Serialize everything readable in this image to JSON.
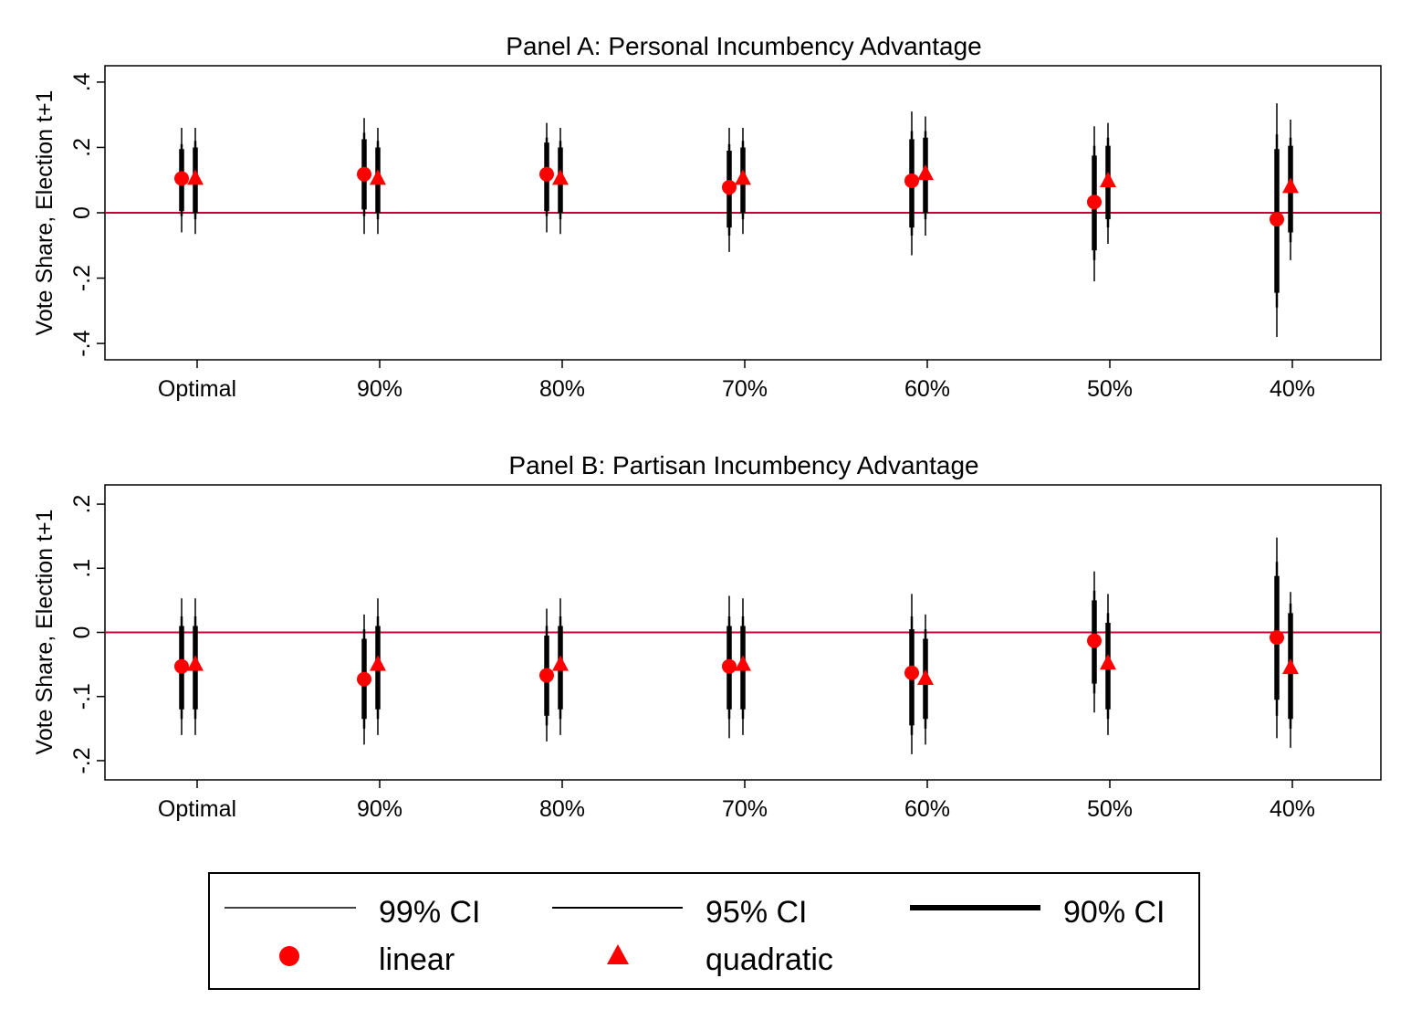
{
  "chart_data": [
    {
      "type": "scatter",
      "title": "Panel A: Personal Incumbency Advantage",
      "ylabel": "Vote Share, Election t+1",
      "xlabel": "",
      "categories": [
        "Optimal",
        "90%",
        "80%",
        "70%",
        "60%",
        "50%",
        "40%"
      ],
      "ylim": [
        -0.45,
        0.45
      ],
      "yticks": [
        -0.4,
        -0.2,
        0,
        0.2,
        0.4
      ],
      "ytick_labels": [
        "-.4",
        "-.2",
        "0",
        ".2",
        ".4"
      ],
      "reference_line": 0,
      "series": [
        {
          "name": "linear",
          "points": [
            {
              "category": "Optimal",
              "estimate": 0.105,
              "ci90": [
                0.005,
                0.195
              ],
              "ci95": [
                -0.01,
                0.21
              ],
              "ci99": [
                -0.06,
                0.26
              ]
            },
            {
              "category": "90%",
              "estimate": 0.118,
              "ci90": [
                0.01,
                0.225
              ],
              "ci95": [
                -0.01,
                0.245
              ],
              "ci99": [
                -0.065,
                0.29
              ]
            },
            {
              "category": "80%",
              "estimate": 0.118,
              "ci90": [
                0.005,
                0.215
              ],
              "ci95": [
                -0.01,
                0.23
              ],
              "ci99": [
                -0.06,
                0.275
              ]
            },
            {
              "category": "70%",
              "estimate": 0.078,
              "ci90": [
                -0.045,
                0.19
              ],
              "ci95": [
                -0.07,
                0.21
              ],
              "ci99": [
                -0.12,
                0.26
              ]
            },
            {
              "category": "60%",
              "estimate": 0.098,
              "ci90": [
                -0.045,
                0.225
              ],
              "ci95": [
                -0.07,
                0.25
              ],
              "ci99": [
                -0.13,
                0.31
              ]
            },
            {
              "category": "50%",
              "estimate": 0.033,
              "ci90": [
                -0.115,
                0.175
              ],
              "ci95": [
                -0.145,
                0.205
              ],
              "ci99": [
                -0.21,
                0.265
              ]
            },
            {
              "category": "40%",
              "estimate": -0.02,
              "ci90": [
                -0.245,
                0.195
              ],
              "ci95": [
                -0.29,
                0.24
              ],
              "ci99": [
                -0.38,
                0.335
              ]
            }
          ]
        },
        {
          "name": "quadratic",
          "points": [
            {
              "category": "Optimal",
              "estimate": 0.105,
              "ci90": [
                0.0,
                0.2
              ],
              "ci95": [
                -0.02,
                0.22
              ],
              "ci99": [
                -0.065,
                0.26
              ]
            },
            {
              "category": "90%",
              "estimate": 0.105,
              "ci90": [
                0.0,
                0.2
              ],
              "ci95": [
                -0.02,
                0.22
              ],
              "ci99": [
                -0.065,
                0.26
              ]
            },
            {
              "category": "80%",
              "estimate": 0.105,
              "ci90": [
                0.0,
                0.2
              ],
              "ci95": [
                -0.02,
                0.22
              ],
              "ci99": [
                -0.065,
                0.26
              ]
            },
            {
              "category": "70%",
              "estimate": 0.105,
              "ci90": [
                0.0,
                0.2
              ],
              "ci95": [
                -0.02,
                0.22
              ],
              "ci99": [
                -0.065,
                0.26
              ]
            },
            {
              "category": "60%",
              "estimate": 0.12,
              "ci90": [
                0.0,
                0.23
              ],
              "ci95": [
                -0.02,
                0.25
              ],
              "ci99": [
                -0.07,
                0.295
              ]
            },
            {
              "category": "50%",
              "estimate": 0.098,
              "ci90": [
                -0.02,
                0.205
              ],
              "ci95": [
                -0.045,
                0.23
              ],
              "ci99": [
                -0.095,
                0.275
              ]
            },
            {
              "category": "40%",
              "estimate": 0.08,
              "ci90": [
                -0.06,
                0.205
              ],
              "ci95": [
                -0.09,
                0.23
              ],
              "ci99": [
                -0.145,
                0.285
              ]
            }
          ]
        }
      ]
    },
    {
      "type": "scatter",
      "title": "Panel B: Partisan Incumbency Advantage",
      "ylabel": "Vote Share, Election t+1",
      "xlabel": "",
      "categories": [
        "Optimal",
        "90%",
        "80%",
        "70%",
        "60%",
        "50%",
        "40%"
      ],
      "ylim": [
        -0.23,
        0.23
      ],
      "yticks": [
        -0.2,
        -0.1,
        0,
        0.1,
        0.2
      ],
      "ytick_labels": [
        "-.2",
        "-.1",
        "0",
        ".1",
        ".2"
      ],
      "reference_line": 0,
      "series": [
        {
          "name": "linear",
          "points": [
            {
              "category": "Optimal",
              "estimate": -0.053,
              "ci90": [
                -0.12,
                0.01
              ],
              "ci95": [
                -0.135,
                0.025
              ],
              "ci99": [
                -0.16,
                0.053
              ]
            },
            {
              "category": "90%",
              "estimate": -0.073,
              "ci90": [
                -0.135,
                -0.01
              ],
              "ci95": [
                -0.15,
                0.005
              ],
              "ci99": [
                -0.175,
                0.028
              ]
            },
            {
              "category": "80%",
              "estimate": -0.067,
              "ci90": [
                -0.13,
                -0.005
              ],
              "ci95": [
                -0.145,
                0.01
              ],
              "ci99": [
                -0.17,
                0.037
              ]
            },
            {
              "category": "70%",
              "estimate": -0.053,
              "ci90": [
                -0.12,
                0.01
              ],
              "ci95": [
                -0.135,
                0.025
              ],
              "ci99": [
                -0.165,
                0.057
              ]
            },
            {
              "category": "60%",
              "estimate": -0.063,
              "ci90": [
                -0.145,
                0.005
              ],
              "ci95": [
                -0.16,
                0.025
              ],
              "ci99": [
                -0.19,
                0.06
              ]
            },
            {
              "category": "50%",
              "estimate": -0.013,
              "ci90": [
                -0.08,
                0.05
              ],
              "ci95": [
                -0.095,
                0.065
              ],
              "ci99": [
                -0.125,
                0.095
              ]
            },
            {
              "category": "40%",
              "estimate": -0.008,
              "ci90": [
                -0.105,
                0.088
              ],
              "ci95": [
                -0.13,
                0.11
              ],
              "ci99": [
                -0.165,
                0.148
              ]
            }
          ]
        },
        {
          "name": "quadratic",
          "points": [
            {
              "category": "Optimal",
              "estimate": -0.05,
              "ci90": [
                -0.12,
                0.01
              ],
              "ci95": [
                -0.135,
                0.025
              ],
              "ci99": [
                -0.16,
                0.053
              ]
            },
            {
              "category": "90%",
              "estimate": -0.05,
              "ci90": [
                -0.12,
                0.01
              ],
              "ci95": [
                -0.135,
                0.025
              ],
              "ci99": [
                -0.16,
                0.053
              ]
            },
            {
              "category": "80%",
              "estimate": -0.05,
              "ci90": [
                -0.12,
                0.01
              ],
              "ci95": [
                -0.135,
                0.025
              ],
              "ci99": [
                -0.16,
                0.053
              ]
            },
            {
              "category": "70%",
              "estimate": -0.05,
              "ci90": [
                -0.12,
                0.01
              ],
              "ci95": [
                -0.135,
                0.025
              ],
              "ci99": [
                -0.16,
                0.053
              ]
            },
            {
              "category": "60%",
              "estimate": -0.072,
              "ci90": [
                -0.135,
                -0.01
              ],
              "ci95": [
                -0.15,
                0.005
              ],
              "ci99": [
                -0.175,
                0.028
              ]
            },
            {
              "category": "50%",
              "estimate": -0.048,
              "ci90": [
                -0.12,
                0.015
              ],
              "ci95": [
                -0.135,
                0.03
              ],
              "ci99": [
                -0.16,
                0.06
              ]
            },
            {
              "category": "40%",
              "estimate": -0.055,
              "ci90": [
                -0.135,
                0.03
              ],
              "ci95": [
                -0.15,
                0.045
              ],
              "ci99": [
                -0.18,
                0.063
              ]
            }
          ]
        }
      ]
    }
  ],
  "legend": {
    "placement": "bottom",
    "items": [
      {
        "label": "99% CI",
        "kind": "line-thin"
      },
      {
        "label": "95% CI",
        "kind": "line-medium"
      },
      {
        "label": "90% CI",
        "kind": "line-thick"
      },
      {
        "label": "linear",
        "kind": "circle-marker"
      },
      {
        "label": "quadratic",
        "kind": "triangle-marker"
      }
    ]
  },
  "colors": {
    "marker": "#ff0000",
    "reference_line": "#c8003a",
    "ci": "#000000",
    "axis": "#000000"
  }
}
